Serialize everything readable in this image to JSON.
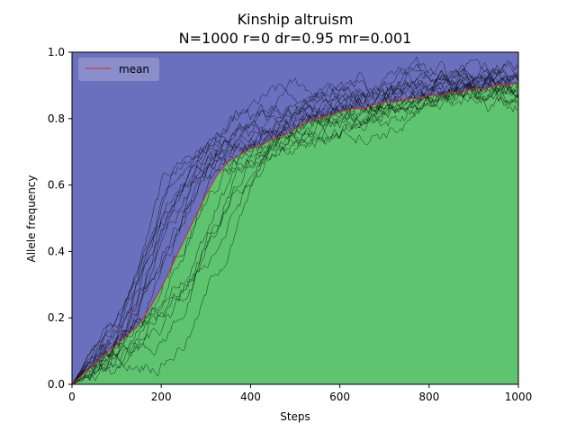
{
  "chart_data": {
    "type": "area",
    "title": "Kinship altruism",
    "subtitle": "N=1000 r=0 dr=0.95 mr=0.001",
    "xlabel": "Steps",
    "ylabel": "Allele frequency",
    "xlim": [
      0,
      1000
    ],
    "ylim": [
      0,
      1.0
    ],
    "x_ticks": [
      0,
      200,
      400,
      600,
      800,
      1000
    ],
    "y_ticks": [
      0.0,
      0.2,
      0.4,
      0.6,
      0.8,
      1.0
    ],
    "x_tick_labels": [
      "0",
      "200",
      "400",
      "600",
      "800",
      "1000"
    ],
    "y_tick_labels": [
      "0.0",
      "0.2",
      "0.4",
      "0.6",
      "0.8",
      "1.0"
    ],
    "legend": {
      "placement": "top-left",
      "entries": [
        "mean"
      ]
    },
    "grid": false,
    "colors": {
      "upper_fill": "#6b70be",
      "lower_fill": "#5ec46f",
      "mean_line": "#d62728",
      "run_lines": "#000000",
      "legend_bg": "#8f93cc"
    },
    "mean": {
      "name": "mean",
      "x": [
        0,
        25,
        50,
        75,
        100,
        125,
        150,
        175,
        200,
        225,
        250,
        275,
        300,
        325,
        350,
        375,
        400,
        425,
        450,
        475,
        500,
        525,
        550,
        575,
        600,
        625,
        650,
        675,
        700,
        725,
        750,
        775,
        800,
        825,
        850,
        875,
        900,
        925,
        950,
        975,
        1000
      ],
      "values": [
        0.0,
        0.03,
        0.06,
        0.09,
        0.12,
        0.15,
        0.18,
        0.23,
        0.29,
        0.36,
        0.43,
        0.5,
        0.57,
        0.63,
        0.67,
        0.69,
        0.71,
        0.72,
        0.74,
        0.75,
        0.77,
        0.79,
        0.8,
        0.81,
        0.82,
        0.83,
        0.83,
        0.84,
        0.85,
        0.85,
        0.86,
        0.86,
        0.87,
        0.87,
        0.88,
        0.88,
        0.89,
        0.89,
        0.9,
        0.9,
        0.91
      ]
    },
    "run_count": 20
  }
}
